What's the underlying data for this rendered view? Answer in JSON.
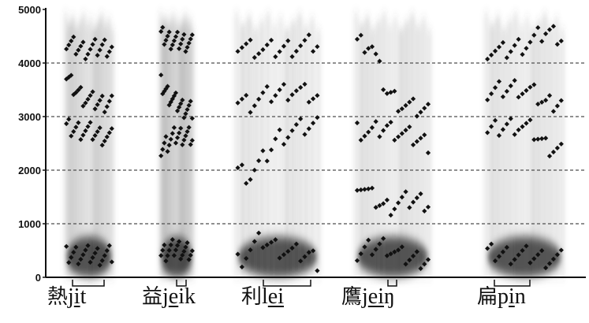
{
  "chart_data": {
    "type": "scatter",
    "title": "",
    "xlabel": "",
    "ylabel": "",
    "ylim": [
      0,
      5000
    ],
    "y_ticks": [
      "0",
      "1000",
      "2000",
      "3000",
      "4000",
      "5000"
    ],
    "grid": "dashed horizontal lines at 1000, 2000, 3000, 4000",
    "background": "greyscale spectrogram",
    "series_color": "#111111",
    "segments": [
      {
        "char": "熱",
        "romanization_parts": [
          "j",
          "i",
          "t"
        ],
        "underlined_part": 1,
        "formants": [
          {
            "name": "F1",
            "x": [
              0,
              0.2,
              0.4,
              0.6,
              0.8,
              1
            ],
            "y": [
              400,
              430,
              420,
              410,
              400,
              420
            ]
          },
          {
            "name": "F2",
            "x": [
              0,
              0.2,
              0.4,
              0.6,
              0.8,
              1
            ],
            "y": [
              2780,
              2760,
              2740,
              2700,
              2640,
              2600
            ]
          },
          {
            "name": "F3",
            "x": [
              0,
              0.2,
              0.4,
              0.6,
              0.8,
              1
            ],
            "y": [
              3700,
              3500,
              3350,
              3280,
              3250,
              3300
            ]
          },
          {
            "name": "F4",
            "x": [
              0,
              0.2,
              0.4,
              0.6,
              0.8,
              1
            ],
            "y": [
              4350,
              4300,
              4250,
              4260,
              4300,
              4300
            ]
          }
        ]
      },
      {
        "char": "益",
        "romanization_parts": [
          "j",
          "e",
          "ik"
        ],
        "underlined_part": 1,
        "formants": [
          {
            "name": "F1",
            "x": [
              0,
              0.25,
              0.5,
              0.75,
              1
            ],
            "y": [
              450,
              500,
              560,
              480,
              450
            ]
          },
          {
            "name": "F2",
            "x": [
              0,
              0.25,
              0.5,
              0.75,
              1
            ],
            "y": [
              2400,
              2550,
              2650,
              2650,
              2600
            ]
          },
          {
            "name": "F3",
            "x": [
              0,
              0.25,
              0.5,
              0.75,
              1
            ],
            "y": [
              3600,
              3400,
              3250,
              3150,
              3100
            ]
          },
          {
            "name": "F4",
            "x": [
              0,
              0.25,
              0.5,
              0.75,
              1
            ],
            "y": [
              4500,
              4450,
              4400,
              4400,
              4350
            ]
          }
        ]
      },
      {
        "char": "利",
        "romanization_parts": [
          "l",
          "ei",
          ""
        ],
        "underlined_part": 1,
        "formants": [
          {
            "name": "F1",
            "x": [
              0,
              0.15,
              0.3,
              0.5,
              0.7,
              0.9,
              1
            ],
            "y": [
              300,
              500,
              700,
              550,
              450,
              420,
              300
            ]
          },
          {
            "name": "F2",
            "x": [
              0,
              0.15,
              0.3,
              0.5,
              0.7,
              0.9,
              1
            ],
            "y": [
              2000,
              1900,
              2150,
              2600,
              2750,
              2820,
              2850
            ]
          },
          {
            "name": "F3",
            "x": [
              0,
              0.15,
              0.3,
              0.5,
              0.7,
              0.9,
              1
            ],
            "y": [
              3300,
              3250,
              3350,
              3450,
              3500,
              3400,
              3350
            ]
          },
          {
            "name": "F4",
            "x": [
              0,
              0.15,
              0.3,
              0.5,
              0.7,
              0.9,
              1
            ],
            "y": [
              4350,
              4300,
              4250,
              4250,
              4300,
              4350,
              4350
            ]
          }
        ]
      },
      {
        "char": "鷹",
        "romanization_parts": [
          "j",
          "ei",
          "ŋ"
        ],
        "underlined_part": 1,
        "formants": [
          {
            "name": "F1",
            "x": [
              0,
              0.2,
              0.4,
              0.6,
              0.8,
              1
            ],
            "y": [
              400,
              550,
              600,
              400,
              350,
              330
            ]
          },
          {
            "name": "F2",
            "x": [
              0,
              0.2,
              0.4,
              0.6,
              0.8,
              1
            ],
            "y": [
              1800,
              1500,
              1300,
              1400,
              1450,
              1400
            ]
          },
          {
            "name": "F3",
            "x": [
              0,
              0.2,
              0.4,
              0.6,
              0.8,
              1
            ],
            "y": [
              2750,
              2700,
              2800,
              2700,
              2600,
              2500
            ]
          },
          {
            "name": "F4",
            "x": [
              0,
              0.2,
              0.4,
              0.6,
              0.8,
              1
            ],
            "y": [
              4400,
              4350,
              3500,
              3250,
              3150,
              3100
            ]
          }
        ]
      },
      {
        "char": "扁",
        "romanization_parts": [
          "p",
          "i",
          "n"
        ],
        "underlined_part": 1,
        "formants": [
          {
            "name": "F1",
            "x": [
              0,
              0.2,
              0.4,
              0.6,
              0.8,
              1
            ],
            "y": [
              450,
              430,
              420,
              400,
              350,
              330
            ]
          },
          {
            "name": "F2",
            "x": [
              0,
              0.2,
              0.4,
              0.6,
              0.8,
              1
            ],
            "y": [
              2700,
              2800,
              2850,
              2750,
              2450,
              2400
            ]
          },
          {
            "name": "F3",
            "x": [
              0,
              0.2,
              0.4,
              0.6,
              0.8,
              1
            ],
            "y": [
              3400,
              3500,
              3550,
              3450,
              3250,
              3300
            ]
          },
          {
            "name": "F4",
            "x": [
              0,
              0.2,
              0.4,
              0.6,
              0.8,
              1
            ],
            "y": [
              4250,
              4200,
              4300,
              4400,
              4600,
              4500
            ]
          }
        ]
      }
    ]
  }
}
